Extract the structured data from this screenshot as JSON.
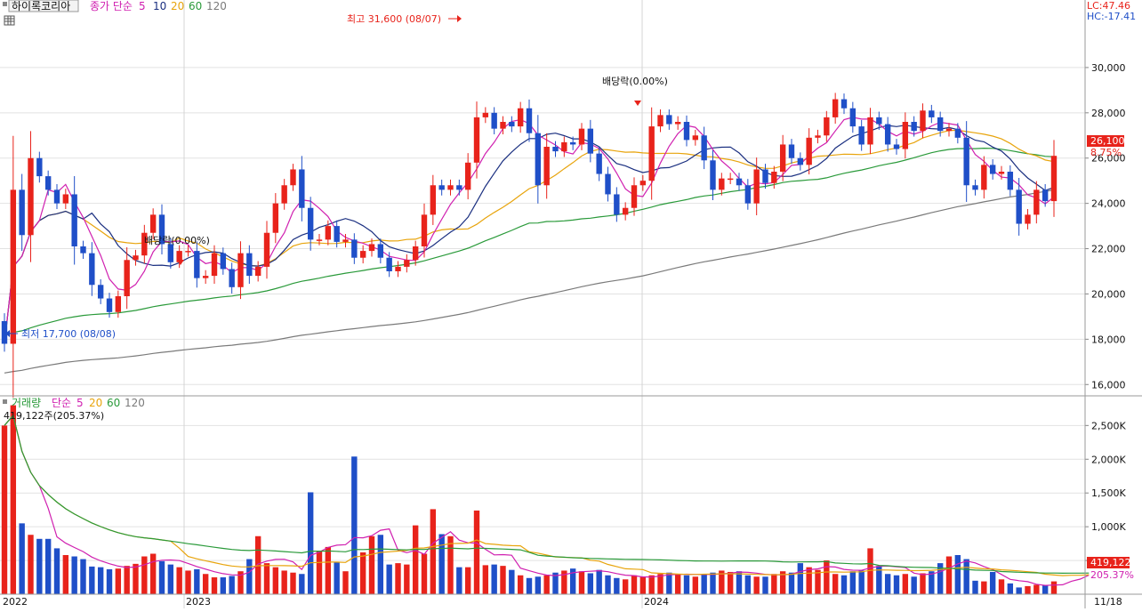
{
  "price_panel": {
    "stock_name": "하이록코리아",
    "ma_label": "종가 단순",
    "ma_periods": [
      "5",
      "10",
      "20",
      "60",
      "120"
    ],
    "lc_label": "LC:47.46",
    "hc_label": "HC:-17.41",
    "high_annotation": "최고 31,600 (08/07)",
    "low_annotation": "최저 17,700 (08/08)",
    "dividend_label": "배당락(0.00%)",
    "current_price_label": "26,100",
    "current_change_label": "8.75%"
  },
  "volume_panel": {
    "title": "거래량",
    "ma_label": "단순",
    "ma_periods": [
      "5",
      "20",
      "60",
      "120"
    ],
    "info": "419,122주(205.37%)",
    "current_volume_label": "419,122",
    "current_ratio_label": "205.37%"
  },
  "x_axis": {
    "labels": [
      "2022",
      "2023",
      "2024"
    ],
    "end_label": "11/18"
  },
  "colors": {
    "up": "#e8231b",
    "down": "#1f4fc8",
    "ma5": "#d020b0",
    "ma10": "#1a2f80",
    "ma20": "#e8a40c",
    "ma60": "#2a9a3a",
    "ma120": "#7a7a7a"
  },
  "chart_data": [
    {
      "type": "candlestick",
      "title": "하이록코리아",
      "ylim": [
        15500,
        32000
      ],
      "y_ticks": [
        16000,
        18000,
        20000,
        22000,
        24000,
        26000,
        28000,
        30000
      ],
      "high": {
        "value": 31600,
        "date": "08/07"
      },
      "low": {
        "value": 17700,
        "date": "08/08"
      },
      "last_close": 26100,
      "last_change_pct": 8.75,
      "closes": [
        17800,
        24600,
        22600,
        26000,
        25200,
        24600,
        24000,
        24400,
        22100,
        21800,
        20400,
        19800,
        19200,
        19900,
        21500,
        21700,
        22700,
        23500,
        22200,
        21400,
        21900,
        21900,
        20700,
        20800,
        21800,
        21100,
        20300,
        21800,
        20800,
        21200,
        22700,
        24000,
        24800,
        25500,
        23800,
        22400,
        22400,
        23000,
        22300,
        22400,
        21600,
        21900,
        22200,
        21600,
        21000,
        21200,
        21500,
        22100,
        23500,
        24800,
        24600,
        24800,
        24600,
        25800,
        27800,
        28000,
        27300,
        27600,
        27400,
        28200,
        27100,
        24800,
        26500,
        26300,
        26700,
        26600,
        27300,
        26200,
        25300,
        24400,
        23500,
        23800,
        24800,
        25000,
        27400,
        27900,
        27500,
        27600,
        26800,
        27000,
        25900,
        24600,
        25100,
        25100,
        24800,
        24000,
        25500,
        24900,
        25400,
        26600,
        26000,
        25700,
        26900,
        27000,
        27800,
        28600,
        28200,
        27400,
        26600,
        27800,
        27500,
        26600,
        26400,
        27600,
        27200,
        28100,
        27800,
        27200,
        27300,
        26900,
        24800,
        24600,
        25700,
        25300,
        25400,
        24600,
        23100,
        23500,
        24600,
        24100,
        26100
      ],
      "volumes": [
        2500,
        2800,
        1050,
        880,
        820,
        820,
        680,
        580,
        560,
        520,
        410,
        400,
        370,
        380,
        420,
        450,
        560,
        600,
        490,
        440,
        400,
        350,
        370,
        300,
        250,
        250,
        270,
        340,
        520,
        860,
        460,
        400,
        350,
        320,
        300,
        1510,
        640,
        700,
        480,
        340,
        2040,
        620,
        860,
        880,
        440,
        460,
        440,
        1020,
        600,
        1260,
        890,
        860,
        400,
        400,
        1240,
        430,
        440,
        420,
        360,
        280,
        240,
        260,
        280,
        320,
        350,
        380,
        340,
        310,
        360,
        280,
        240,
        220,
        280,
        260,
        280,
        300,
        320,
        300,
        280,
        260,
        300,
        320,
        350,
        330,
        340,
        280,
        260,
        260,
        300,
        340,
        320,
        460,
        400,
        360,
        500,
        300,
        280,
        340,
        350,
        680,
        420,
        300,
        280,
        300,
        260,
        310,
        340,
        460,
        560,
        580,
        520,
        200,
        190,
        330,
        220,
        160,
        100,
        120,
        140,
        130,
        190,
        120,
        380,
        300,
        419
      ]
    }
  ]
}
